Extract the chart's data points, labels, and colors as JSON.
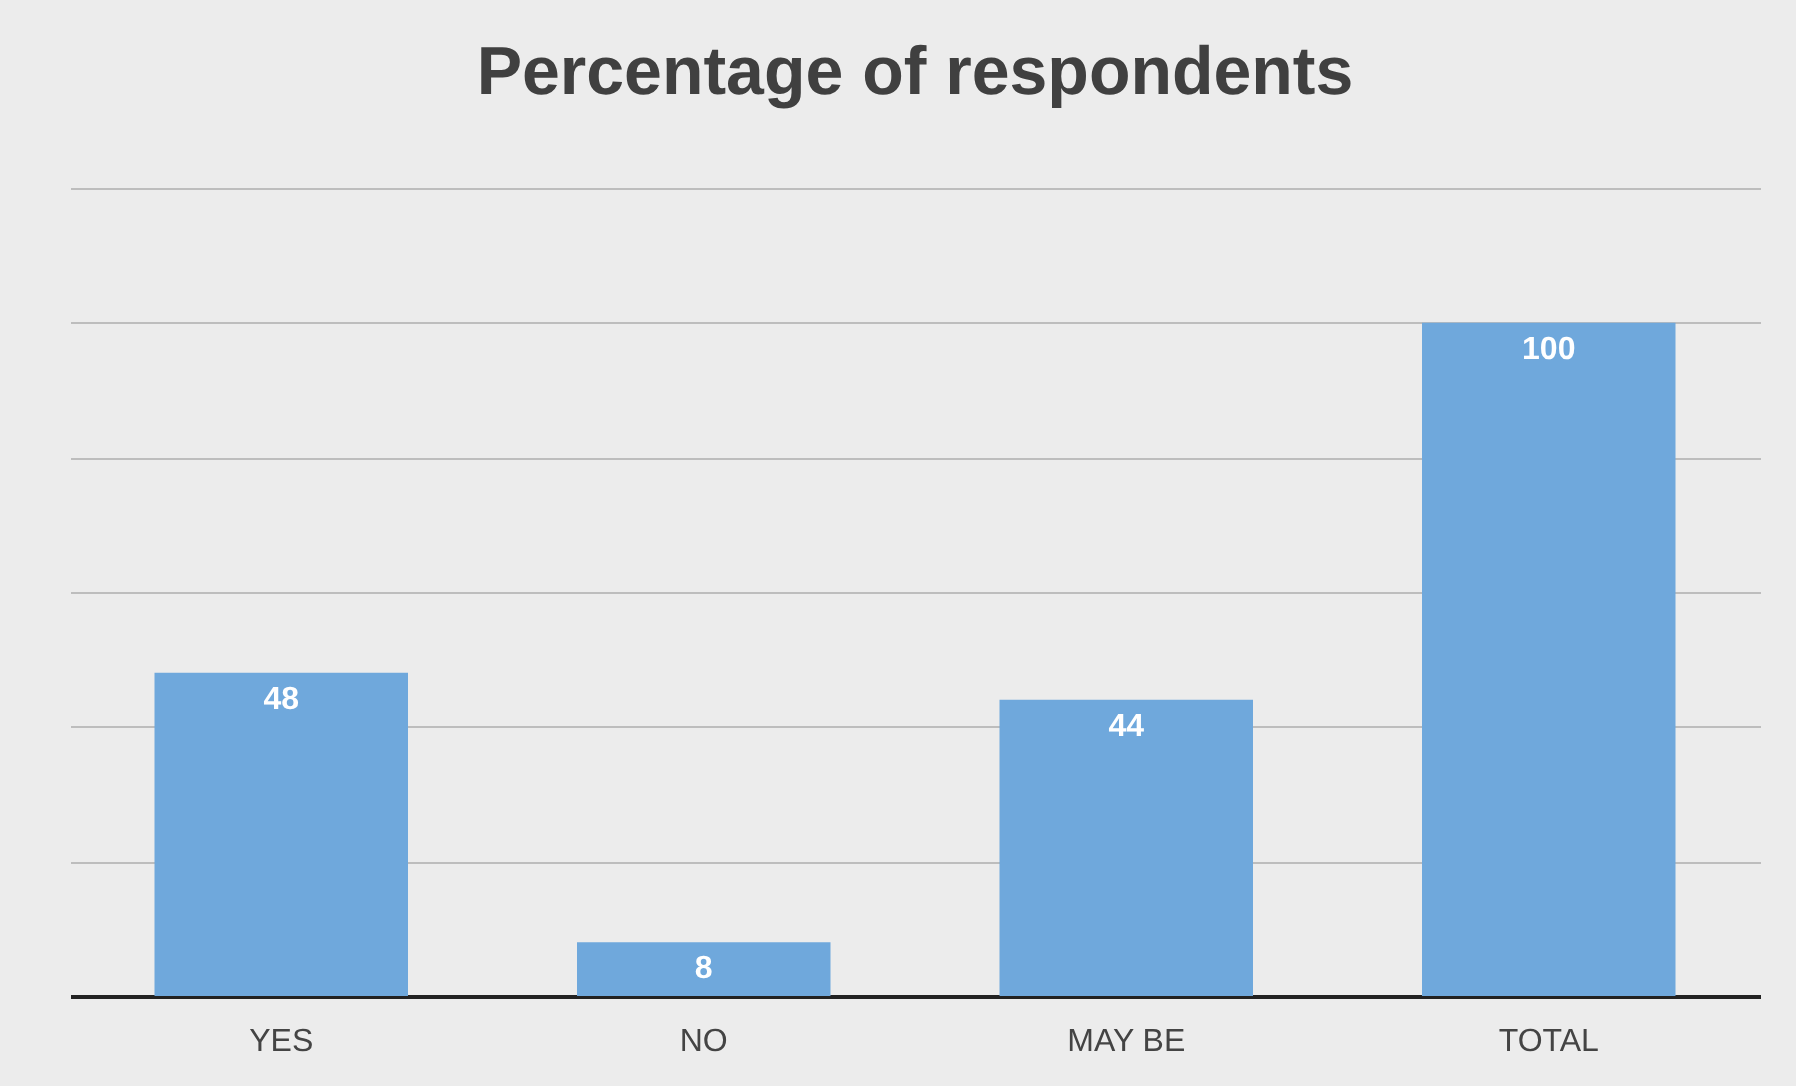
{
  "chart_data": {
    "type": "bar",
    "title": "Percentage of respondents",
    "categories": [
      "YES",
      "NO",
      "MAY BE",
      "TOTAL"
    ],
    "values": [
      48,
      8,
      44,
      100
    ],
    "color": "#6fa8dc",
    "ylim": [
      0,
      120
    ],
    "yticks": [
      {
        "value": 0,
        "label": null
      },
      {
        "value": 20,
        "label": null
      },
      {
        "value": 40,
        "label": null
      },
      {
        "value": 60,
        "label": null
      },
      {
        "value": 80,
        "label": null
      },
      {
        "value": 100,
        "label": null
      },
      {
        "value": 120,
        "label": null
      }
    ],
    "grid": "y",
    "tick_labels": "x",
    "data_labels": true
  }
}
